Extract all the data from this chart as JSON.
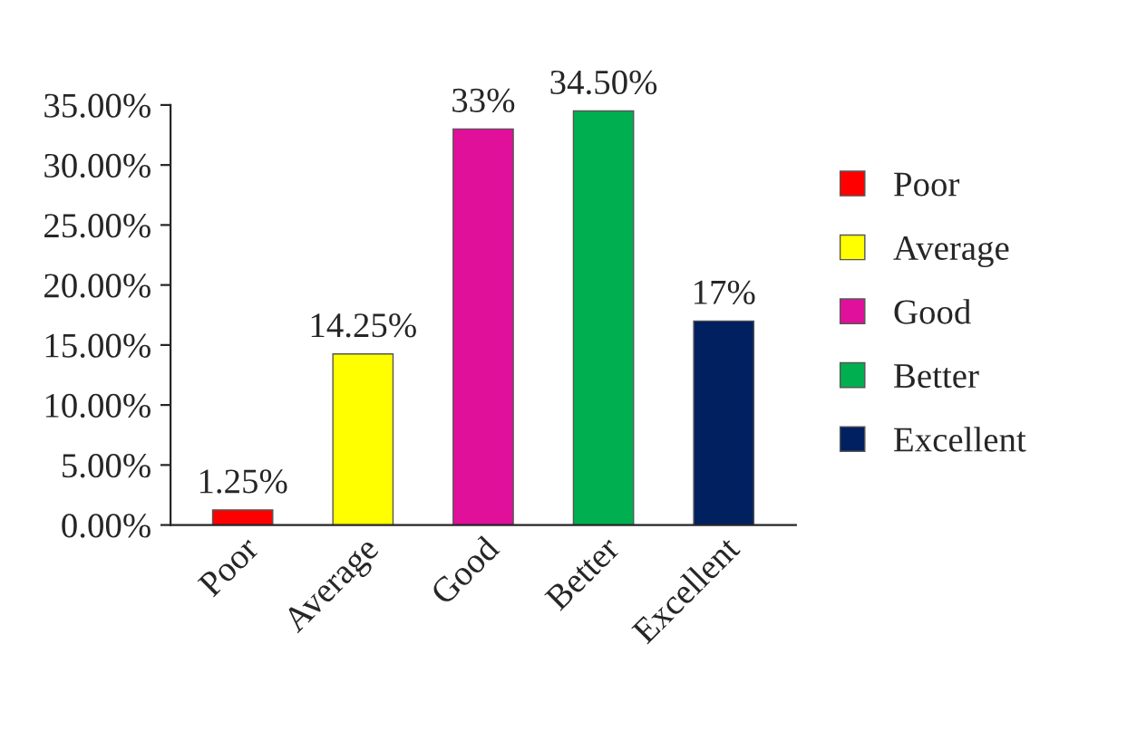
{
  "chart_data": {
    "type": "bar",
    "categories": [
      "Poor",
      "Average",
      "Good",
      "Better",
      "Excellent"
    ],
    "series": [
      {
        "name": "Poor",
        "color": "#ff0000",
        "values": [
          1.25,
          null,
          null,
          null,
          null
        ],
        "value_labels": [
          "1.25%",
          null,
          null,
          null,
          null
        ]
      },
      {
        "name": "Average",
        "color": "#ffff00",
        "values": [
          null,
          14.25,
          null,
          null,
          null
        ],
        "value_labels": [
          null,
          "14.25%",
          null,
          null,
          null
        ]
      },
      {
        "name": "Good",
        "color": "#e0109b",
        "values": [
          null,
          null,
          33,
          null,
          null
        ],
        "value_labels": [
          null,
          null,
          "33%",
          null,
          null
        ]
      },
      {
        "name": "Better",
        "color": "#00b050",
        "values": [
          null,
          null,
          null,
          34.5,
          null
        ],
        "value_labels": [
          null,
          null,
          null,
          "34.50%",
          null
        ]
      },
      {
        "name": "Excellent",
        "color": "#002060",
        "values": [
          null,
          null,
          null,
          null,
          17
        ],
        "value_labels": [
          null,
          null,
          null,
          null,
          "17%"
        ]
      }
    ],
    "ylim": [
      0,
      35
    ],
    "yticks": [
      {
        "value": 0,
        "label": "0.00%"
      },
      {
        "value": 5,
        "label": "5.00%"
      },
      {
        "value": 10,
        "label": "10.00%"
      },
      {
        "value": 15,
        "label": "15.00%"
      },
      {
        "value": 20,
        "label": "20.00%"
      },
      {
        "value": 25,
        "label": "25.00%"
      },
      {
        "value": 30,
        "label": "30.00%"
      },
      {
        "value": 35,
        "label": "35.00%"
      }
    ],
    "legend": "right"
  }
}
